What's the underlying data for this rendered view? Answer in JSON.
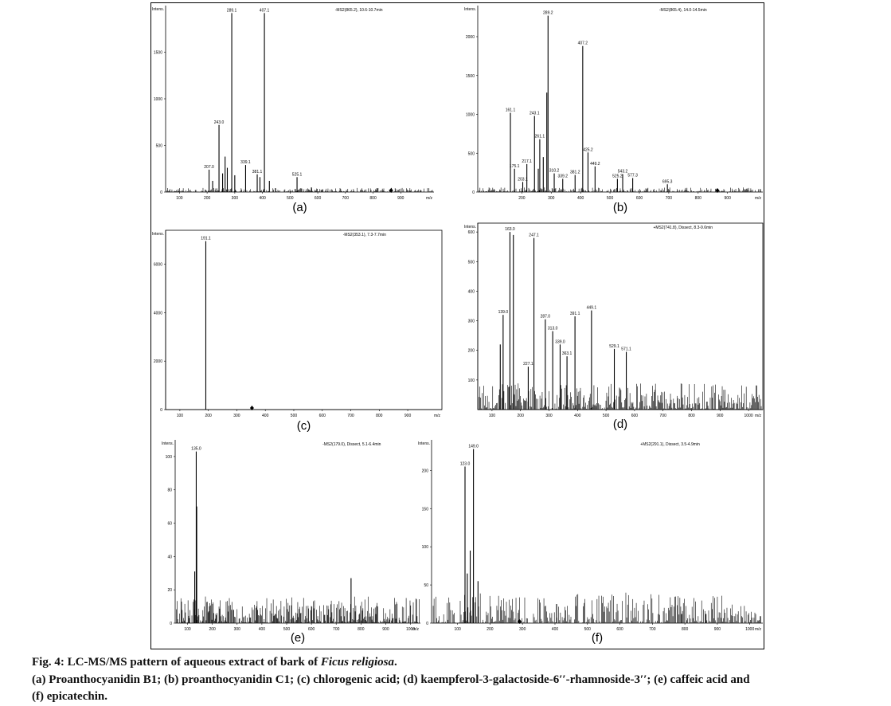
{
  "figure": {
    "caption_prefix": "Fig. 4: LC-MS/MS pattern of aqueous extract of bark of ",
    "caption_species": "Ficus religiosa",
    "caption_suffix": ".",
    "caption_line2": "(a) Proanthocyanidin B1; (b) proanthocyanidin C1; (c) chlorogenic acid; (d) kaempferol-3-galactoside-6′′-rhamnoside-3′′; (e) caffeic acid and",
    "caption_line3": "(f) epicatechin."
  },
  "chart_data": [
    {
      "panel": "(a)",
      "type": "bar",
      "ylabel": "Intens.",
      "xlabel": "m/z",
      "header": "-MS2(865.2), 10.6-10.7min",
      "xlim": [
        50,
        1020
      ],
      "ylim": [
        0,
        2000
      ],
      "xticks": [
        100,
        200,
        300,
        400,
        500,
        600,
        700,
        800,
        900
      ],
      "yticks": [
        0,
        500,
        1000,
        1500
      ],
      "noise_max": 45,
      "peaks": [
        {
          "x": 207.0,
          "y": 240,
          "label": "207.0"
        },
        {
          "x": 220.0,
          "y": 120
        },
        {
          "x": 243.0,
          "y": 720,
          "label": "243.0"
        },
        {
          "x": 256.0,
          "y": 200
        },
        {
          "x": 265.0,
          "y": 380
        },
        {
          "x": 273.0,
          "y": 260
        },
        {
          "x": 289.1,
          "y": 1920,
          "label": "289.1"
        },
        {
          "x": 300.0,
          "y": 180
        },
        {
          "x": 339.1,
          "y": 290,
          "label": "339.1"
        },
        {
          "x": 381.1,
          "y": 190,
          "label": "381.1"
        },
        {
          "x": 391.0,
          "y": 160
        },
        {
          "x": 407.1,
          "y": 1920,
          "label": "407.1"
        },
        {
          "x": 425.0,
          "y": 120
        },
        {
          "x": 525.1,
          "y": 160,
          "label": "525.1"
        },
        {
          "x": 577.0,
          "y": 50
        }
      ],
      "precursor_marker": 865.2
    },
    {
      "panel": "(b)",
      "type": "bar",
      "ylabel": "Intens.",
      "xlabel": "m/z",
      "header": "-MS2(865.4), 14.0-14.5min",
      "xlim": [
        50,
        1020
      ],
      "ylim": [
        0,
        2400
      ],
      "xticks": [
        200,
        300,
        400,
        500,
        600,
        700,
        800,
        900
      ],
      "yticks": [
        0,
        500,
        1000,
        1500,
        2000
      ],
      "noise_max": 60,
      "peaks": [
        {
          "x": 161.1,
          "y": 1020,
          "label": "161.1"
        },
        {
          "x": 175.1,
          "y": 300,
          "label": "175.1"
        },
        {
          "x": 203.1,
          "y": 130,
          "label": "203.1"
        },
        {
          "x": 217.1,
          "y": 360,
          "label": "217.1"
        },
        {
          "x": 243.1,
          "y": 980,
          "label": "243.1"
        },
        {
          "x": 256.0,
          "y": 300
        },
        {
          "x": 261.1,
          "y": 680,
          "label": "261.1"
        },
        {
          "x": 273.0,
          "y": 450
        },
        {
          "x": 285.0,
          "y": 1280
        },
        {
          "x": 289.2,
          "y": 2270,
          "label": "289.2"
        },
        {
          "x": 310.2,
          "y": 240,
          "label": "310.2"
        },
        {
          "x": 339.2,
          "y": 170,
          "label": "339.2"
        },
        {
          "x": 381.2,
          "y": 220,
          "label": "381.2"
        },
        {
          "x": 407.2,
          "y": 1880,
          "label": "407.2"
        },
        {
          "x": 425.2,
          "y": 510,
          "label": "425.2"
        },
        {
          "x": 449.2,
          "y": 330,
          "label": "449.2"
        },
        {
          "x": 525.2,
          "y": 170,
          "label": "525.2"
        },
        {
          "x": 543.2,
          "y": 230,
          "label": "543.2"
        },
        {
          "x": 577.3,
          "y": 180,
          "label": "577.3"
        },
        {
          "x": 695.3,
          "y": 100,
          "label": "695.3"
        }
      ],
      "precursor_marker": 865.4
    },
    {
      "panel": "(c)",
      "type": "bar",
      "ylabel": "Intens.",
      "xlabel": "m/z",
      "header": "-MS2(353.1), 7.3-7.7min",
      "xlim": [
        50,
        1020
      ],
      "ylim": [
        0,
        7400
      ],
      "xticks": [
        100,
        200,
        300,
        400,
        500,
        600,
        700,
        800,
        900
      ],
      "yticks": [
        0,
        2000,
        4000,
        6000
      ],
      "noise_max": 0,
      "peaks": [
        {
          "x": 191.1,
          "y": 6950,
          "label": "191.1"
        }
      ],
      "precursor_marker": 353.1
    },
    {
      "panel": "(d)",
      "type": "bar",
      "ylabel": "Intens.",
      "xlabel": "m/z",
      "header": "+MS2(741.8), Dissect, 8.3-9.6min",
      "xlim": [
        50,
        1050
      ],
      "ylim": [
        0,
        630
      ],
      "xticks": [
        100,
        200,
        300,
        400,
        500,
        600,
        700,
        800,
        900,
        1000
      ],
      "yticks": [
        100,
        200,
        300,
        400,
        500,
        600
      ],
      "noise_max": 90,
      "peaks": [
        {
          "x": 129.0,
          "y": 220
        },
        {
          "x": 139.0,
          "y": 320,
          "label": "139.0"
        },
        {
          "x": 163.0,
          "y": 600,
          "label": "163.0"
        },
        {
          "x": 175.0,
          "y": 590
        },
        {
          "x": 227.1,
          "y": 145,
          "label": "227.1"
        },
        {
          "x": 247.1,
          "y": 580,
          "label": "247.1"
        },
        {
          "x": 287.0,
          "y": 305,
          "label": "287.0"
        },
        {
          "x": 313.0,
          "y": 265,
          "label": "313.0"
        },
        {
          "x": 339.0,
          "y": 220,
          "label": "339.0"
        },
        {
          "x": 363.1,
          "y": 180,
          "label": "363.1"
        },
        {
          "x": 391.1,
          "y": 315,
          "label": "391.1"
        },
        {
          "x": 449.1,
          "y": 335,
          "label": "449.1"
        },
        {
          "x": 529.1,
          "y": 205,
          "label": "529.1"
        },
        {
          "x": 571.1,
          "y": 195,
          "label": "571.1"
        }
      ]
    },
    {
      "panel": "(e)",
      "type": "bar",
      "ylabel": "Intens.",
      "xlabel": "m/z",
      "header": "-MS2(179.0), Dissect, 5.1-6.4min",
      "xlim": [
        50,
        1040
      ],
      "ylim": [
        0,
        110
      ],
      "xticks": [
        100,
        200,
        300,
        400,
        500,
        600,
        700,
        800,
        900,
        1000
      ],
      "yticks": [
        0,
        20,
        40,
        60,
        80,
        100
      ],
      "noise_max": 16,
      "peaks": [
        {
          "x": 129.0,
          "y": 31
        },
        {
          "x": 135.0,
          "y": 103,
          "label": "135.0"
        },
        {
          "x": 137.0,
          "y": 70
        },
        {
          "x": 760.0,
          "y": 27
        }
      ]
    },
    {
      "panel": "(f)",
      "type": "bar",
      "ylabel": "Intens.",
      "xlabel": "m/z",
      "header": "+MS2(291.1), Dissect, 3.5-4.9min",
      "xlim": [
        20,
        1040
      ],
      "ylim": [
        0,
        240
      ],
      "xticks": [
        100,
        200,
        300,
        400,
        500,
        600,
        700,
        800,
        900,
        1000
      ],
      "yticks": [
        0,
        50,
        100,
        150,
        200
      ],
      "noise_max": 40,
      "peaks": [
        {
          "x": 123.0,
          "y": 205,
          "label": "123.0"
        },
        {
          "x": 130.0,
          "y": 65
        },
        {
          "x": 139.0,
          "y": 95
        },
        {
          "x": 149.0,
          "y": 228,
          "label": "149.0"
        },
        {
          "x": 163.0,
          "y": 55
        },
        {
          "x": 405.0,
          "y": 25
        },
        {
          "x": 790.0,
          "y": 12
        },
        {
          "x": 865.0,
          "y": 12
        }
      ],
      "precursor_marker": 291.1
    }
  ]
}
